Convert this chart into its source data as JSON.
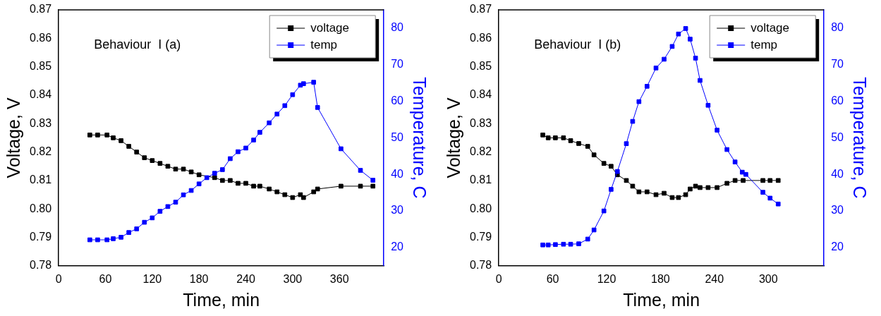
{
  "chart_data": [
    {
      "type": "line",
      "annotations": [
        "Behaviour  I (a)"
      ],
      "xlabel": "Time, min",
      "ylabel": "Voltage, V",
      "y2label": "Temperature, C",
      "xlim": [
        0,
        417
      ],
      "xticks": [
        0,
        60,
        120,
        180,
        240,
        300,
        360
      ],
      "ylim": [
        0.78,
        0.87
      ],
      "yticks": [
        {
          "value": 0.78,
          "label": "0.78"
        },
        {
          "value": 0.79,
          "label": "0.79"
        },
        {
          "value": 0.8,
          "label": "0.80"
        },
        {
          "value": 0.81,
          "label": "0.81"
        },
        {
          "value": 0.82,
          "label": "0.82"
        },
        {
          "value": 0.83,
          "label": "0.83"
        },
        {
          "value": 0.84,
          "label": "0.84"
        },
        {
          "value": 0.85,
          "label": "0.85"
        },
        {
          "value": 0.86,
          "label": "0.86"
        },
        {
          "value": 0.87,
          "label": "0.87"
        }
      ],
      "y2lim": [
        15,
        85
      ],
      "y2ticks": [
        20,
        30,
        40,
        50,
        60,
        70,
        80
      ],
      "legend": "top right",
      "marker": "square",
      "line_style": "solid",
      "grid": false,
      "series": [
        {
          "name": "voltage",
          "color": "#000000",
          "x": [
            40,
            50,
            62,
            70,
            80,
            90,
            100,
            110,
            120,
            130,
            140,
            150,
            160,
            170,
            180,
            190,
            200,
            210,
            220,
            230,
            240,
            250,
            258,
            270,
            280,
            290,
            300,
            310,
            314,
            327,
            332,
            362,
            387,
            403
          ],
          "values": [
            0.826,
            0.826,
            0.826,
            0.825,
            0.824,
            0.822,
            0.82,
            0.818,
            0.817,
            0.816,
            0.815,
            0.814,
            0.814,
            0.813,
            0.812,
            null,
            0.811,
            0.81,
            0.81,
            0.809,
            0.809,
            0.808,
            0.808,
            0.807,
            0.806,
            0.805,
            0.804,
            0.805,
            0.804,
            0.806,
            0.807,
            0.808,
            0.808,
            0.808
          ]
        },
        {
          "name": "temp",
          "color": "#0000ff",
          "axis": "y2",
          "x": [
            40,
            50,
            62,
            70,
            80,
            90,
            100,
            110,
            120,
            130,
            140,
            150,
            160,
            170,
            180,
            190,
            200,
            210,
            220,
            230,
            240,
            250,
            258,
            270,
            280,
            290,
            300,
            310,
            314,
            327,
            332,
            362,
            387,
            403
          ],
          "values": [
            22.1,
            22.1,
            22.1,
            22.4,
            22.8,
            24.1,
            25.1,
            26.9,
            28.1,
            29.9,
            31.2,
            32.4,
            34.4,
            35.6,
            37.4,
            39.1,
            40.3,
            41.3,
            44.3,
            46.2,
            47.2,
            49.4,
            51.5,
            54.1,
            56.5,
            58.8,
            61.8,
            64.4,
            64.8,
            65.2,
            58.3,
            47.0,
            41.1,
            38.4
          ]
        }
      ]
    },
    {
      "type": "line",
      "annotations": [
        "Behaviour  I (b)"
      ],
      "xlabel": "Time, min",
      "ylabel": "Voltage, V",
      "y2label": "Temperature, C",
      "xlim": [
        0,
        362
      ],
      "xticks": [
        0,
        60,
        120,
        180,
        240,
        300
      ],
      "ylim": [
        0.78,
        0.87
      ],
      "yticks": [
        {
          "value": 0.78,
          "label": "0.78"
        },
        {
          "value": 0.79,
          "label": "0.79"
        },
        {
          "value": 0.8,
          "label": "0.80"
        },
        {
          "value": 0.81,
          "label": "0.81"
        },
        {
          "value": 0.82,
          "label": "0.82"
        },
        {
          "value": 0.83,
          "label": "0.83"
        },
        {
          "value": 0.84,
          "label": "0.84"
        },
        {
          "value": 0.85,
          "label": "0.85"
        },
        {
          "value": 0.86,
          "label": "0.86"
        },
        {
          "value": 0.87,
          "label": "0.87"
        }
      ],
      "y2lim": [
        15,
        85
      ],
      "y2ticks": [
        20,
        30,
        40,
        50,
        60,
        70,
        80
      ],
      "legend": "top right",
      "marker": "square",
      "line_style": "solid",
      "grid": false,
      "series": [
        {
          "name": "voltage",
          "color": "#000000",
          "x": [
            49,
            55,
            63,
            72,
            80,
            89,
            99,
            106,
            117,
            125,
            132,
            142,
            149,
            156,
            165,
            175,
            184,
            193,
            200,
            208,
            213,
            219,
            224,
            233,
            243,
            254,
            263,
            272,
            294,
            302,
            311
          ],
          "values": [
            0.826,
            0.825,
            0.825,
            0.825,
            0.824,
            0.823,
            0.822,
            0.819,
            0.816,
            0.815,
            0.812,
            0.81,
            0.808,
            0.806,
            0.806,
            0.805,
            0.8055,
            0.804,
            0.804,
            0.805,
            0.807,
            0.808,
            0.8075,
            0.8075,
            0.8075,
            0.809,
            0.81,
            0.81,
            0.81,
            0.81,
            0.81
          ]
        },
        {
          "name": "temp",
          "color": "#0000ff",
          "axis": "y2",
          "x": [
            49,
            55,
            63,
            72,
            80,
            89,
            99,
            106,
            117,
            125,
            132,
            142,
            149,
            156,
            165,
            175,
            184,
            193,
            200,
            208,
            213,
            219,
            224,
            233,
            243,
            254,
            263,
            271,
            275,
            294,
            302,
            311
          ],
          "values": [
            20.7,
            20.7,
            20.8,
            20.9,
            20.9,
            21.0,
            22.3,
            24.8,
            30.0,
            35.9,
            40.8,
            48.4,
            54.5,
            59.9,
            64.1,
            69.1,
            71.5,
            75.0,
            78.4,
            79.9,
            77.0,
            71.8,
            65.7,
            58.9,
            52.1,
            46.8,
            43.4,
            40.6,
            40.0,
            35.1,
            33.5,
            31.9
          ]
        }
      ]
    }
  ]
}
